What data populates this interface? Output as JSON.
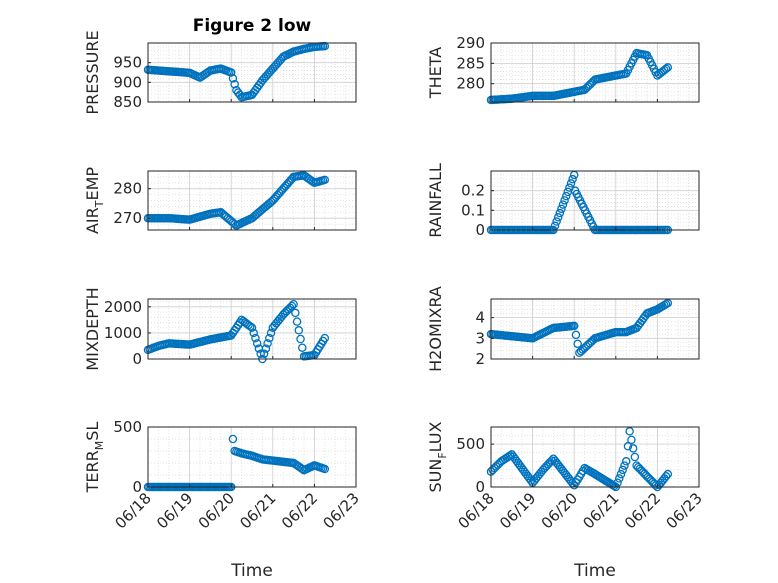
{
  "marker_color": "#0072BD",
  "figure_title": "Figure 2 low",
  "chart_data": [
    {
      "type": "scatter",
      "ylabel": "PRESSURE",
      "ylim": [
        850,
        1000
      ],
      "yticks": [
        850,
        900,
        950
      ],
      "x": [
        "06/18 00:00",
        "06/18 12:00",
        "06/19 00:00",
        "06/19 06:00",
        "06/19 12:00",
        "06/19 18:00",
        "06/20 00:00",
        "06/20 03:00",
        "06/20 06:00",
        "06/20 12:00",
        "06/20 18:00",
        "06/21 00:00",
        "06/21 06:00",
        "06/21 12:00",
        "06/21 18:00",
        "06/22 00:00",
        "06/22 06:00"
      ],
      "y": [
        932,
        928,
        924,
        912,
        930,
        935,
        925,
        880,
        862,
        868,
        905,
        935,
        965,
        978,
        985,
        990,
        992
      ]
    },
    {
      "type": "scatter",
      "ylabel": "THETA",
      "ylim": [
        275.5,
        290
      ],
      "yticks": [
        280,
        285,
        290
      ],
      "x": [
        "06/18 00:00",
        "06/18 12:00",
        "06/19 00:00",
        "06/19 12:00",
        "06/20 00:00",
        "06/20 06:00",
        "06/20 12:00",
        "06/21 00:00",
        "06/21 06:00",
        "06/21 12:00",
        "06/21 18:00",
        "06/22 00:00",
        "06/22 06:00"
      ],
      "y": [
        276,
        276.3,
        277,
        277,
        278,
        278.5,
        281,
        282,
        282.5,
        287.5,
        287,
        282,
        284
      ]
    },
    {
      "type": "scatter",
      "ylabel": "AIR_TEMP",
      "ylim": [
        266,
        286
      ],
      "yticks": [
        270,
        280
      ],
      "x": [
        "06/18 00:00",
        "06/18 12:00",
        "06/19 00:00",
        "06/19 12:00",
        "06/19 18:00",
        "06/20 00:00",
        "06/20 03:00",
        "06/20 12:00",
        "06/21 00:00",
        "06/21 12:00",
        "06/21 18:00",
        "06/22 00:00",
        "06/22 06:00"
      ],
      "y": [
        270,
        270,
        269.5,
        271.5,
        272,
        269,
        267.5,
        270,
        276,
        284,
        284.5,
        282,
        283
      ]
    },
    {
      "type": "scatter",
      "ylabel": "RAINFALL",
      "ylim": [
        0,
        0.3
      ],
      "yticks": [
        0,
        0.1,
        0.2
      ],
      "x": [
        "06/18 00:00",
        "06/19 00:00",
        "06/19 12:00",
        "06/20 00:00",
        "06/20 00:30",
        "06/20 12:00",
        "06/21 00:00",
        "06/21 12:00",
        "06/22 00:00",
        "06/22 06:00"
      ],
      "y": [
        0,
        0,
        0,
        0.28,
        0.2,
        0,
        0,
        0,
        0,
        0
      ]
    },
    {
      "type": "scatter",
      "ylabel": "MIXDEPTH",
      "ylim": [
        0,
        2300
      ],
      "yticks": [
        0,
        1000,
        2000
      ],
      "x": [
        "06/18 00:00",
        "06/18 06:00",
        "06/18 12:00",
        "06/19 00:00",
        "06/19 12:00",
        "06/20 00:00",
        "06/20 06:00",
        "06/20 12:00",
        "06/20 18:00",
        "06/21 00:00",
        "06/21 06:00",
        "06/21 12:00",
        "06/21 18:00",
        "06/22 00:00",
        "06/22 06:00"
      ],
      "y": [
        350,
        500,
        600,
        550,
        750,
        900,
        1500,
        1200,
        0,
        1200,
        1700,
        2100,
        100,
        150,
        800
      ]
    },
    {
      "type": "scatter",
      "ylabel": "H2OMIXRA",
      "ylim": [
        2,
        4.9
      ],
      "yticks": [
        2,
        3,
        4
      ],
      "x": [
        "06/18 00:00",
        "06/18 12:00",
        "06/19 00:00",
        "06/19 12:00",
        "06/20 00:00",
        "06/20 03:00",
        "06/20 12:00",
        "06/21 00:00",
        "06/21 06:00",
        "06/21 12:00",
        "06/21 18:00",
        "06/22 00:00",
        "06/22 06:00"
      ],
      "y": [
        3.2,
        3.1,
        3.0,
        3.5,
        3.6,
        2.3,
        3.0,
        3.3,
        3.3,
        3.5,
        4.2,
        4.4,
        4.7
      ]
    },
    {
      "type": "scatter",
      "ylabel": "TERR_MSL",
      "ylim": [
        0,
        500
      ],
      "yticks": [
        0,
        500
      ],
      "x": [
        "06/18 00:00",
        "06/18 12:00",
        "06/19 00:00",
        "06/19 12:00",
        "06/20 00:00",
        "06/20 01:00",
        "06/20 02:00",
        "06/20 06:00",
        "06/20 12:00",
        "06/20 18:00",
        "06/21 00:00",
        "06/21 12:00",
        "06/21 18:00",
        "06/22 00:00",
        "06/22 06:00"
      ],
      "y": [
        0,
        0,
        0,
        0,
        0,
        400,
        300,
        280,
        260,
        230,
        220,
        200,
        140,
        180,
        150
      ]
    },
    {
      "type": "scatter",
      "ylabel": "SUN_FLUX",
      "ylim": [
        0,
        700
      ],
      "yticks": [
        0,
        500
      ],
      "x": [
        "06/18 00:00",
        "06/18 06:00",
        "06/18 12:00",
        "06/19 00:00",
        "06/19 06:00",
        "06/19 12:00",
        "06/20 00:00",
        "06/20 06:00",
        "06/20 12:00",
        "06/21 00:00",
        "06/21 06:00",
        "06/21 08:00",
        "06/21 12:00",
        "06/22 00:00",
        "06/22 06:00"
      ],
      "y": [
        180,
        300,
        380,
        50,
        200,
        330,
        20,
        220,
        150,
        0,
        300,
        650,
        250,
        0,
        150
      ]
    }
  ],
  "shared_x": {
    "xlabel": "Time",
    "xticks": [
      "06/18",
      "06/19",
      "06/20",
      "06/21",
      "06/22",
      "06/23"
    ],
    "xlim": [
      "06/18 00:00",
      "06/23 00:00"
    ]
  }
}
